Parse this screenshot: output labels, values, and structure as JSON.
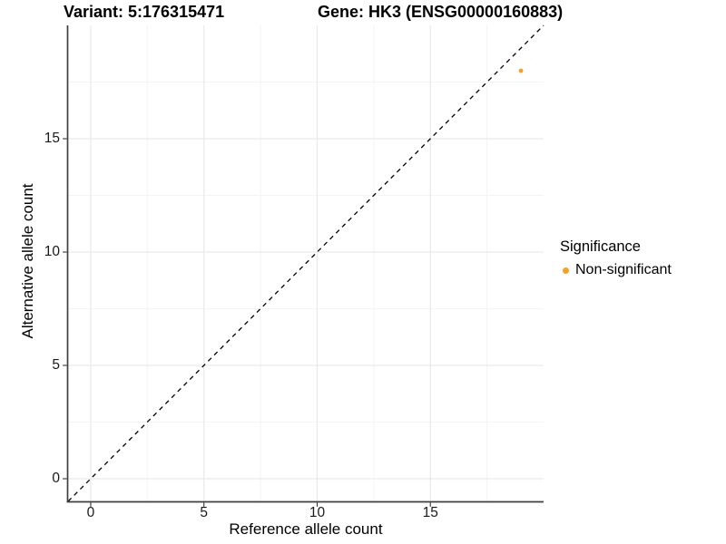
{
  "titles": {
    "variant": "Variant: 5:176315471",
    "gene": "Gene: HK3 (ENSG00000160883)"
  },
  "chart_data": {
    "type": "scatter",
    "xlabel": "Reference allele count",
    "ylabel": "Alternative allele count",
    "xlim": [
      -1,
      20
    ],
    "ylim": [
      -1,
      20
    ],
    "x_ticks": [
      0,
      5,
      10,
      15
    ],
    "y_ticks": [
      0,
      5,
      10,
      15
    ],
    "x_minor_ticks": [
      2.5,
      7.5,
      12.5,
      17.5
    ],
    "y_minor_ticks": [
      2.5,
      7.5,
      12.5,
      17.5
    ],
    "grid": "on",
    "reference_line": {
      "type": "identity y=x",
      "style": "dashed",
      "color": "#000000"
    },
    "series": [
      {
        "name": "Non-significant",
        "color": "#F9A11E",
        "marker": "circle",
        "points": [
          {
            "x": 19,
            "y": 18
          }
        ]
      }
    ],
    "legend": {
      "position": "right",
      "title": "Significance",
      "items": [
        {
          "label": "Non-significant",
          "color": "#F9A11E"
        }
      ]
    }
  }
}
